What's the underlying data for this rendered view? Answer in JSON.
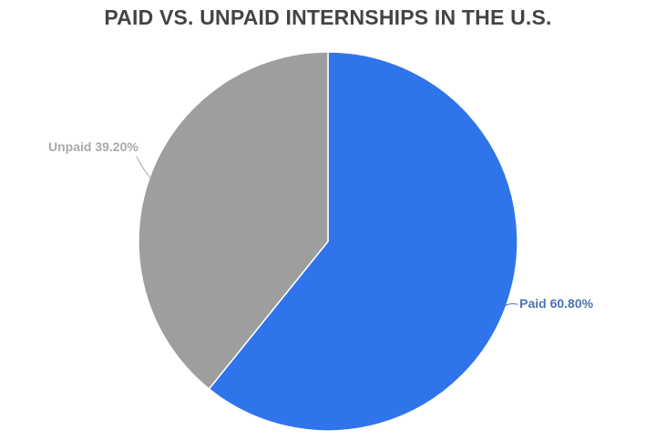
{
  "chart_data": {
    "type": "pie",
    "title": "PAID VS. UNPAID INTERNSHIPS IN THE U.S.",
    "start_angle": "12 o'clock, clockwise",
    "slices": [
      {
        "name": "Paid",
        "value": 60.8,
        "label": "Paid 60.80%",
        "color": "#2f74ea",
        "label_color": "#4a72b8"
      },
      {
        "name": "Unpaid",
        "value": 39.2,
        "label": "Unpaid 39.20%",
        "color": "#9e9e9e",
        "label_color": "#aaaaaa"
      }
    ]
  }
}
